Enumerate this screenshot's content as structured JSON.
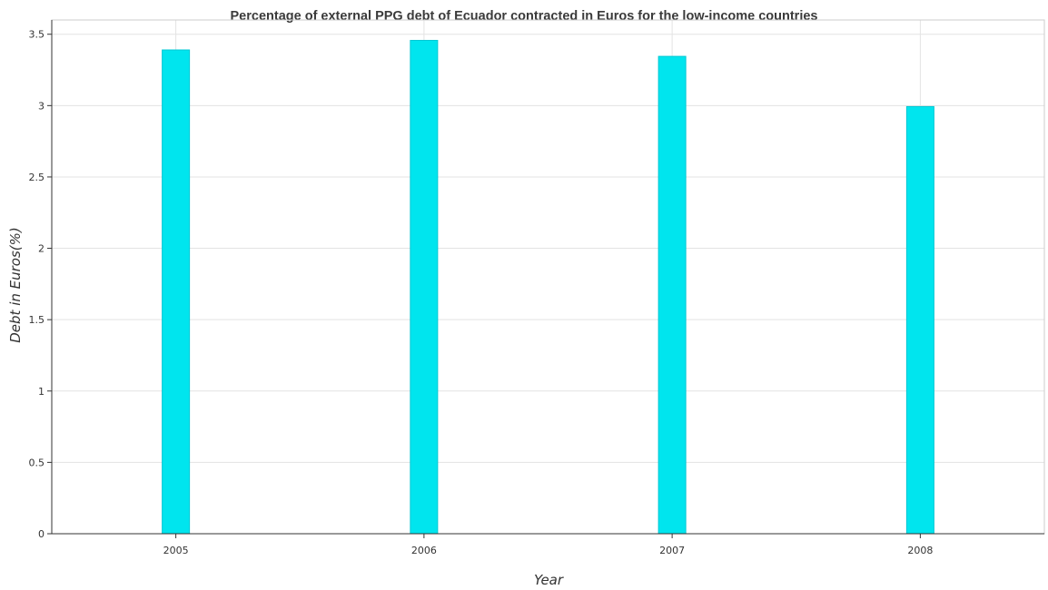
{
  "chart_data": {
    "type": "bar",
    "title": "Percentage of external PPG debt of Ecuador contracted in Euros for the low-income countries",
    "xlabel": "Year",
    "ylabel": "Debt in Euros(%)",
    "categories": [
      "2005",
      "2006",
      "2007",
      "2008"
    ],
    "values": [
      3.39,
      3.457,
      3.345,
      2.993
    ],
    "ylim": [
      0,
      3.6
    ],
    "yticks": [
      "0",
      "0.5",
      "1",
      "1.5",
      "2",
      "2.5",
      "3",
      "3.5"
    ],
    "bar_color": "#00e5ee",
    "bar_edge_color": "#00c8d4",
    "grid": true,
    "legend": "none"
  }
}
